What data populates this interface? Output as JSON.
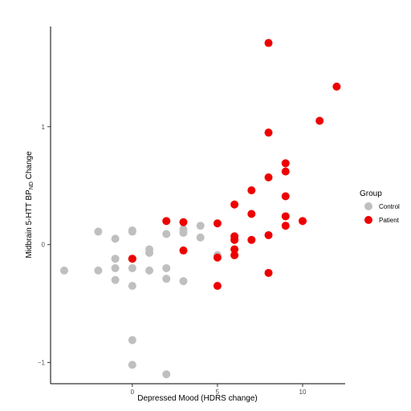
{
  "chart_data": {
    "type": "scatter",
    "title": "",
    "xlabel": "Depressed Mood (HDRS change)",
    "ylabel": {
      "prefix": "Midbrain 5-HTT BP",
      "subscript": "ND",
      "suffix": " Change"
    },
    "xlim": [
      -4.8,
      12.5
    ],
    "ylim": [
      -1.18,
      1.85
    ],
    "x_ticks": [
      0,
      5,
      10
    ],
    "y_ticks": [
      -1,
      0,
      1
    ],
    "grid": false,
    "legend": {
      "title": "Group",
      "position": "right",
      "entries": [
        "Control",
        "Patient"
      ]
    },
    "colors": {
      "Control": "#bfbfbf",
      "Patient": "#ee0000"
    },
    "series": [
      {
        "name": "Control",
        "points": [
          [
            -4,
            -0.22
          ],
          [
            -2,
            0.11
          ],
          [
            -2,
            -0.22
          ],
          [
            -1,
            0.05
          ],
          [
            -1,
            -0.12
          ],
          [
            -1,
            -0.2
          ],
          [
            -1,
            -0.3
          ],
          [
            0,
            0.12
          ],
          [
            0,
            0.11
          ],
          [
            0,
            -0.12
          ],
          [
            0,
            -0.2
          ],
          [
            0,
            -0.35
          ],
          [
            0,
            -0.81
          ],
          [
            0,
            -1.02
          ],
          [
            1,
            -0.04
          ],
          [
            1,
            -0.07
          ],
          [
            1,
            -0.22
          ],
          [
            2,
            0.09
          ],
          [
            2,
            -0.2
          ],
          [
            2,
            -0.29
          ],
          [
            2,
            -1.1
          ],
          [
            3,
            0.13
          ],
          [
            3,
            0.1
          ],
          [
            3,
            -0.31
          ],
          [
            4,
            0.16
          ],
          [
            4,
            0.06
          ],
          [
            5,
            -0.09
          ]
        ]
      },
      {
        "name": "Patient",
        "points": [
          [
            0,
            -0.12
          ],
          [
            2,
            0.2
          ],
          [
            3,
            0.19
          ],
          [
            3,
            -0.05
          ],
          [
            5,
            0.18
          ],
          [
            5,
            -0.11
          ],
          [
            5,
            -0.35
          ],
          [
            6,
            0.34
          ],
          [
            6,
            0.07
          ],
          [
            6,
            0.04
          ],
          [
            6,
            -0.04
          ],
          [
            6,
            -0.09
          ],
          [
            7,
            0.46
          ],
          [
            7,
            0.26
          ],
          [
            7,
            0.04
          ],
          [
            8,
            1.71
          ],
          [
            8,
            0.95
          ],
          [
            8,
            0.57
          ],
          [
            8,
            0.08
          ],
          [
            8,
            -0.24
          ],
          [
            9,
            0.69
          ],
          [
            9,
            0.62
          ],
          [
            9,
            0.41
          ],
          [
            9,
            0.24
          ],
          [
            9,
            0.16
          ],
          [
            10,
            0.2
          ],
          [
            11,
            1.05
          ],
          [
            12,
            1.34
          ]
        ]
      }
    ]
  }
}
